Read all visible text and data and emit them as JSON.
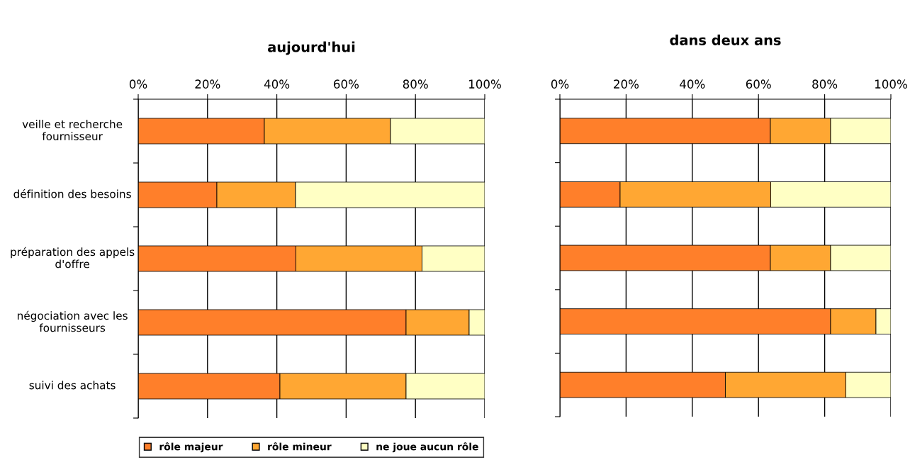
{
  "chart_data": [
    {
      "type": "bar",
      "orientation": "horizontal",
      "stacked": true,
      "title": "aujourd'hui",
      "categories": [
        "veille et recherche fournisseur",
        "définition des besoins",
        "préparation des appels d'offre",
        "négociation avec les fournisseurs",
        "suivi des achats"
      ],
      "series": [
        {
          "name": "rôle majeur",
          "color": "#ff7f2a",
          "values": [
            36.4,
            22.7,
            45.5,
            77.3,
            40.9
          ]
        },
        {
          "name": "rôle mineur",
          "color": "#ffa733",
          "values": [
            36.4,
            22.7,
            36.4,
            18.2,
            36.4
          ]
        },
        {
          "name": "ne joue aucun rôle",
          "color": "#ffffc4",
          "values": [
            27.2,
            54.6,
            18.1,
            4.5,
            22.7
          ]
        }
      ],
      "xlim": [
        0,
        100
      ],
      "xticks": [
        {
          "value": 0,
          "label": "0%"
        },
        {
          "value": 20,
          "label": "20%"
        },
        {
          "value": 40,
          "label": "40%"
        },
        {
          "value": 60,
          "label": "60%"
        },
        {
          "value": 80,
          "label": "80%"
        },
        {
          "value": 100,
          "label": "100%"
        }
      ],
      "grid": "x",
      "legend": "bottom"
    },
    {
      "type": "bar",
      "orientation": "horizontal",
      "stacked": true,
      "title": "dans deux ans",
      "categories": [
        null,
        null,
        null,
        null,
        null
      ],
      "series": [
        {
          "color": "#ff7f2a",
          "values": [
            63.6,
            18.2,
            63.6,
            81.8,
            50.0
          ]
        },
        {
          "color": "#ffa733",
          "values": [
            18.2,
            45.5,
            18.2,
            13.7,
            36.4
          ]
        },
        {
          "color": "#ffffc4",
          "values": [
            18.2,
            36.3,
            18.2,
            4.5,
            13.6
          ]
        }
      ],
      "xlim": [
        0,
        100
      ],
      "xticks": [
        {
          "value": 0,
          "label": "0%"
        },
        {
          "value": 20,
          "label": "20%"
        },
        {
          "value": 40,
          "label": "40%"
        },
        {
          "value": 60,
          "label": "60%"
        },
        {
          "value": 80,
          "label": "80%"
        },
        {
          "value": 100,
          "label": "100%"
        }
      ],
      "grid": "x"
    }
  ]
}
